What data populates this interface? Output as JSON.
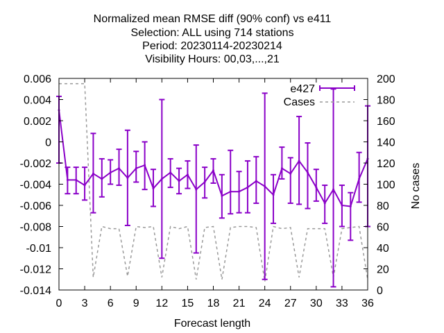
{
  "chart_data": {
    "type": "line",
    "title_lines": [
      "Normalized mean RMSE diff (90% conf) vs e411",
      "Selection: ALL using   714 stations",
      "Period: 20230114-20230214",
      "Visibility   Hours:  00,03,...,21"
    ],
    "xlabel": "Forecast length",
    "ylabel_left": "",
    "ylabel_right": "No cases",
    "xlim": [
      0,
      36
    ],
    "ylim_left": [
      -0.014,
      0.006
    ],
    "ylim_right": [
      0,
      200
    ],
    "x_ticks": [
      0,
      3,
      6,
      9,
      12,
      15,
      18,
      21,
      24,
      27,
      30,
      33,
      36
    ],
    "y_ticks_left": [
      "0.006",
      "0.004",
      "0.002",
      "0",
      "-0.002",
      "-0.004",
      "-0.006",
      "-0.008",
      "-0.01",
      "-0.012",
      "-0.014"
    ],
    "y_ticks_left_values": [
      0.006,
      0.004,
      0.002,
      0,
      -0.002,
      -0.004,
      -0.006,
      -0.008,
      -0.01,
      -0.012,
      -0.014
    ],
    "y_ticks_right": [
      200,
      180,
      160,
      140,
      120,
      100,
      80,
      60,
      40,
      20,
      0
    ],
    "legend_position": "top-right",
    "grid": false,
    "series": [
      {
        "name": "e427",
        "axis": "left",
        "style": "line-with-errorbars",
        "color": "#8a00c8",
        "x": [
          0,
          1,
          2,
          3,
          4,
          5,
          6,
          7,
          8,
          9,
          10,
          11,
          12,
          13,
          14,
          15,
          16,
          17,
          18,
          19,
          20,
          21,
          22,
          23,
          24,
          25,
          26,
          27,
          28,
          29,
          30,
          31,
          32,
          33,
          34,
          35,
          36
        ],
        "y": [
          0.003,
          -0.0036,
          -0.0036,
          -0.0041,
          -0.003,
          -0.0035,
          -0.0029,
          -0.0025,
          -0.0034,
          -0.0025,
          -0.0022,
          -0.0044,
          -0.0035,
          -0.0029,
          -0.0037,
          -0.0031,
          -0.0045,
          -0.0038,
          -0.0027,
          -0.0051,
          -0.0047,
          -0.0047,
          -0.0043,
          -0.0037,
          -0.0042,
          -0.005,
          -0.0025,
          -0.003,
          -0.0018,
          -0.0029,
          -0.0043,
          -0.0058,
          -0.0045,
          -0.006,
          -0.0061,
          -0.0035,
          -0.0016
        ],
        "err_low": [
          -0.002,
          -0.0049,
          -0.0049,
          -0.0055,
          -0.0067,
          -0.0052,
          -0.004,
          -0.0041,
          -0.0079,
          -0.0038,
          -0.0045,
          -0.0061,
          -0.011,
          -0.0043,
          -0.0049,
          -0.0044,
          -0.0105,
          -0.0053,
          -0.0039,
          -0.0072,
          -0.0068,
          -0.0067,
          -0.0067,
          -0.0058,
          -0.013,
          -0.0077,
          -0.0035,
          -0.0058,
          -0.0059,
          -0.0063,
          -0.0056,
          -0.0077,
          -0.0137,
          -0.008,
          -0.0093,
          -0.0057,
          -0.008
        ],
        "err_high": [
          0.0043,
          -0.0024,
          -0.0024,
          -0.0024,
          0.0008,
          -0.0016,
          -0.0017,
          -0.0007,
          0.0011,
          -0.0009,
          0,
          -0.0026,
          0.004,
          -0.0016,
          -0.0025,
          -0.0018,
          -0.0003,
          -0.0024,
          -0.0016,
          -0.0031,
          -0.0008,
          -0.0028,
          -0.0018,
          -0.0014,
          0.0046,
          -0.0031,
          -0.0005,
          -0.0015,
          0.0024,
          -0.0001,
          -0.0026,
          -0.0041,
          0.005,
          -0.0041,
          -0.0048,
          -0.001,
          0.0034
        ]
      },
      {
        "name": "Cases",
        "axis": "right",
        "style": "dashed-line",
        "color": "#999999",
        "x": [
          0,
          1,
          2,
          3,
          4,
          5,
          6,
          7,
          8,
          9,
          10,
          11,
          12,
          13,
          14,
          15,
          16,
          17,
          18,
          19,
          20,
          21,
          22,
          23,
          24,
          25,
          26,
          27,
          28,
          29,
          30,
          31,
          32,
          33,
          34,
          35,
          36
        ],
        "y": [
          195,
          195,
          195,
          195,
          12,
          60,
          58,
          58,
          13,
          60,
          59,
          60,
          12,
          60,
          58,
          60,
          10,
          59,
          60,
          10,
          59,
          60,
          60,
          59,
          8,
          60,
          58,
          59,
          12,
          58,
          58,
          58,
          12,
          58,
          59,
          60,
          10
        ]
      }
    ]
  }
}
